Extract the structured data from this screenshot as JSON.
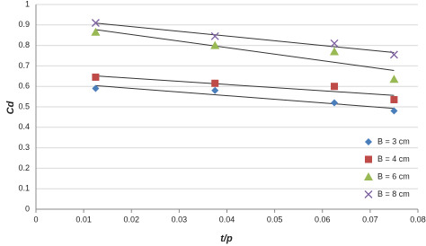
{
  "chart_data": {
    "type": "scatter",
    "x_label": "t/p",
    "y_label": "Cd",
    "x": [
      0.0125,
      0.0375,
      0.0625,
      0.075
    ],
    "series": [
      {
        "name": "B = 3 cm",
        "color": "#4a7ebb",
        "marker": "diamond",
        "values": [
          0.59,
          0.58,
          0.52,
          0.48
        ]
      },
      {
        "name": "B = 4 cm",
        "color": "#be4b48",
        "marker": "square",
        "values": [
          0.645,
          0.615,
          0.6,
          0.535
        ]
      },
      {
        "name": "B = 6 cm",
        "color": "#98b954",
        "marker": "triangle",
        "values": [
          0.865,
          0.8,
          0.77,
          0.635
        ]
      },
      {
        "name": "B = 8 cm",
        "color": "#7d60a0",
        "marker": "x",
        "values": [
          0.91,
          0.845,
          0.81,
          0.755
        ]
      }
    ],
    "trendline": "linear",
    "xlim": [
      0,
      0.08
    ],
    "xticks": [
      0,
      0.01,
      0.02,
      0.03,
      0.04,
      0.05,
      0.06,
      0.07,
      0.08
    ],
    "ylim": [
      0,
      1
    ],
    "yticks": [
      0,
      0.1,
      0.2,
      0.3,
      0.4,
      0.5,
      0.6,
      0.7,
      0.8,
      0.9,
      1
    ],
    "grid": true,
    "legend": "lower right"
  }
}
